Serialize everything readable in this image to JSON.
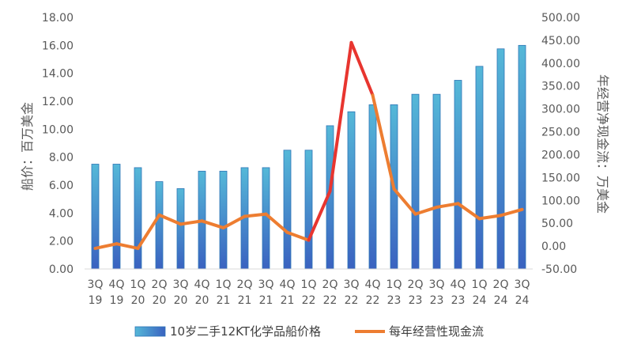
{
  "chart_data": {
    "type": "bar+line",
    "categories": [
      "3Q 19",
      "4Q 19",
      "1Q 20",
      "2Q 20",
      "3Q 20",
      "4Q 20",
      "1Q 21",
      "2Q 21",
      "3Q 21",
      "4Q 21",
      "1Q 22",
      "2Q 22",
      "3Q 22",
      "4Q 22",
      "1Q 23",
      "2Q 23",
      "3Q 23",
      "4Q 23",
      "1Q 24",
      "2Q 24",
      "3Q 24"
    ],
    "category_lines": [
      [
        "3Q",
        "19"
      ],
      [
        "4Q",
        "19"
      ],
      [
        "1Q",
        "20"
      ],
      [
        "2Q",
        "20"
      ],
      [
        "3Q",
        "20"
      ],
      [
        "4Q",
        "20"
      ],
      [
        "1Q",
        "21"
      ],
      [
        "2Q",
        "21"
      ],
      [
        "3Q",
        "21"
      ],
      [
        "4Q",
        "21"
      ],
      [
        "1Q",
        "22"
      ],
      [
        "2Q",
        "22"
      ],
      [
        "3Q",
        "22"
      ],
      [
        "4Q",
        "22"
      ],
      [
        "1Q",
        "23"
      ],
      [
        "2Q",
        "23"
      ],
      [
        "3Q",
        "23"
      ],
      [
        "4Q",
        "23"
      ],
      [
        "1Q",
        "24"
      ],
      [
        "2Q",
        "24"
      ],
      [
        "3Q",
        "24"
      ]
    ],
    "series": [
      {
        "name": "10岁二手12KT化学品船价格",
        "type": "bar",
        "axis": "left",
        "color": "#4A90C8",
        "values": [
          7.5,
          7.5,
          7.25,
          6.25,
          5.75,
          7.0,
          7.0,
          7.25,
          7.25,
          8.5,
          8.5,
          10.25,
          11.25,
          11.75,
          11.75,
          12.5,
          12.5,
          13.5,
          14.5,
          15.75,
          16.0
        ]
      },
      {
        "name": "每年经营性现金流",
        "type": "line",
        "axis": "right",
        "color": "#ED7D31",
        "peak_color": "#E8352F",
        "values": [
          -5,
          5,
          -5,
          68,
          48,
          55,
          40,
          65,
          70,
          30,
          13,
          120,
          445,
          330,
          125,
          70,
          85,
          93,
          60,
          67,
          80
        ]
      }
    ],
    "y_left": {
      "label": "船价：百万美金",
      "ylim": [
        0,
        18
      ],
      "ticks": [
        "0.00",
        "2.00",
        "4.00",
        "6.00",
        "8.00",
        "10.00",
        "12.00",
        "14.00",
        "16.00",
        "18.00"
      ]
    },
    "y_right": {
      "label": "年经营净现金流：万美金",
      "ylim": [
        -50,
        500
      ],
      "ticks": [
        "-50.00",
        "0.00",
        "50.00",
        "100.00",
        "150.00",
        "200.00",
        "250.00",
        "300.00",
        "350.00",
        "400.00",
        "450.00",
        "500.00"
      ]
    },
    "grid": false,
    "legend": "bottom"
  }
}
